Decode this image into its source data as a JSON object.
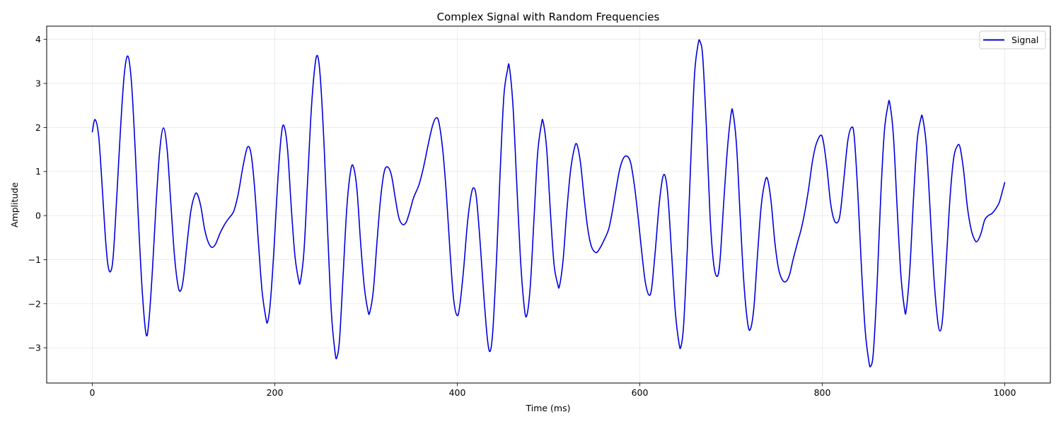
{
  "chart_data": {
    "type": "line",
    "title": "Complex Signal with Random Frequencies",
    "xlabel": "Time (ms)",
    "ylabel": "Amplitude",
    "xlim": [
      -50,
      1050
    ],
    "ylim": [
      -3.8,
      4.3
    ],
    "xticks": [
      0,
      200,
      400,
      600,
      800,
      1000
    ],
    "xtick_labels": [
      "0",
      "200",
      "400",
      "600",
      "800",
      "1000"
    ],
    "yticks": [
      -3,
      -2,
      -1,
      0,
      1,
      2,
      3,
      4
    ],
    "ytick_labels": [
      "−3",
      "−2",
      "−1",
      "0",
      "1",
      "2",
      "3",
      "4"
    ],
    "grid": true,
    "legend_position": "top-right",
    "series": [
      {
        "name": "Signal",
        "color": "#0000dd",
        "points": [
          [
            0,
            1.9
          ],
          [
            3,
            2.18
          ],
          [
            7,
            1.8
          ],
          [
            11,
            0.6
          ],
          [
            14,
            -0.4
          ],
          [
            17,
            -1.1
          ],
          [
            20,
            -1.27
          ],
          [
            23,
            -0.9
          ],
          [
            27,
            0.5
          ],
          [
            31,
            2.0
          ],
          [
            35,
            3.2
          ],
          [
            39,
            3.62
          ],
          [
            43,
            3.0
          ],
          [
            47,
            1.5
          ],
          [
            51,
            -0.3
          ],
          [
            55,
            -1.8
          ],
          [
            59,
            -2.7
          ],
          [
            62,
            -2.4
          ],
          [
            66,
            -1.2
          ],
          [
            70,
            0.3
          ],
          [
            74,
            1.5
          ],
          [
            78,
            1.99
          ],
          [
            82,
            1.5
          ],
          [
            86,
            0.3
          ],
          [
            90,
            -0.9
          ],
          [
            94,
            -1.6
          ],
          [
            97,
            -1.7
          ],
          [
            100,
            -1.4
          ],
          [
            104,
            -0.6
          ],
          [
            108,
            0.1
          ],
          [
            112,
            0.45
          ],
          [
            115,
            0.49
          ],
          [
            119,
            0.2
          ],
          [
            123,
            -0.3
          ],
          [
            127,
            -0.6
          ],
          [
            131,
            -0.72
          ],
          [
            135,
            -0.65
          ],
          [
            140,
            -0.4
          ],
          [
            145,
            -0.2
          ],
          [
            150,
            -0.05
          ],
          [
            155,
            0.1
          ],
          [
            160,
            0.5
          ],
          [
            165,
            1.1
          ],
          [
            170,
            1.55
          ],
          [
            174,
            1.4
          ],
          [
            178,
            0.6
          ],
          [
            182,
            -0.6
          ],
          [
            186,
            -1.7
          ],
          [
            190,
            -2.3
          ],
          [
            192,
            -2.42
          ],
          [
            195,
            -2.0
          ],
          [
            199,
            -0.8
          ],
          [
            203,
            0.7
          ],
          [
            207,
            1.8
          ],
          [
            210,
            2.04
          ],
          [
            214,
            1.5
          ],
          [
            218,
            0.2
          ],
          [
            222,
            -0.9
          ],
          [
            226,
            -1.45
          ],
          [
            228,
            -1.5
          ],
          [
            232,
            -0.8
          ],
          [
            236,
            0.8
          ],
          [
            240,
            2.4
          ],
          [
            244,
            3.4
          ],
          [
            247,
            3.62
          ],
          [
            250,
            3.1
          ],
          [
            254,
            1.6
          ],
          [
            258,
            -0.4
          ],
          [
            262,
            -2.2
          ],
          [
            266,
            -3.1
          ],
          [
            268,
            -3.22
          ],
          [
            271,
            -2.8
          ],
          [
            275,
            -1.3
          ],
          [
            279,
            0.2
          ],
          [
            283,
            1.0
          ],
          [
            286,
            1.12
          ],
          [
            290,
            0.6
          ],
          [
            294,
            -0.6
          ],
          [
            298,
            -1.6
          ],
          [
            302,
            -2.15
          ],
          [
            304,
            -2.2
          ],
          [
            308,
            -1.7
          ],
          [
            312,
            -0.6
          ],
          [
            316,
            0.4
          ],
          [
            320,
            1.0
          ],
          [
            324,
            1.1
          ],
          [
            328,
            0.9
          ],
          [
            332,
            0.4
          ],
          [
            336,
            -0.05
          ],
          [
            340,
            -0.2
          ],
          [
            344,
            -0.15
          ],
          [
            348,
            0.1
          ],
          [
            352,
            0.4
          ],
          [
            358,
            0.7
          ],
          [
            363,
            1.1
          ],
          [
            368,
            1.6
          ],
          [
            373,
            2.05
          ],
          [
            377,
            2.22
          ],
          [
            380,
            2.1
          ],
          [
            384,
            1.5
          ],
          [
            388,
            0.5
          ],
          [
            392,
            -0.8
          ],
          [
            396,
            -1.9
          ],
          [
            400,
            -2.27
          ],
          [
            403,
            -2.0
          ],
          [
            407,
            -1.2
          ],
          [
            411,
            -0.2
          ],
          [
            415,
            0.45
          ],
          [
            418,
            0.63
          ],
          [
            421,
            0.4
          ],
          [
            425,
            -0.6
          ],
          [
            429,
            -1.8
          ],
          [
            433,
            -2.8
          ],
          [
            436,
            -3.08
          ],
          [
            439,
            -2.6
          ],
          [
            443,
            -1.0
          ],
          [
            447,
            1.0
          ],
          [
            451,
            2.7
          ],
          [
            455,
            3.3
          ],
          [
            457,
            3.38
          ],
          [
            461,
            2.5
          ],
          [
            465,
            0.8
          ],
          [
            469,
            -0.9
          ],
          [
            473,
            -2.0
          ],
          [
            476,
            -2.28
          ],
          [
            480,
            -1.6
          ],
          [
            484,
            -0.1
          ],
          [
            488,
            1.4
          ],
          [
            492,
            2.05
          ],
          [
            494,
            2.14
          ],
          [
            498,
            1.5
          ],
          [
            502,
            0.1
          ],
          [
            506,
            -1.1
          ],
          [
            510,
            -1.55
          ],
          [
            512,
            -1.6
          ],
          [
            516,
            -1.0
          ],
          [
            520,
            0.1
          ],
          [
            524,
            1.0
          ],
          [
            528,
            1.5
          ],
          [
            531,
            1.62
          ],
          [
            535,
            1.2
          ],
          [
            539,
            0.4
          ],
          [
            543,
            -0.3
          ],
          [
            547,
            -0.7
          ],
          [
            552,
            -0.84
          ],
          [
            556,
            -0.75
          ],
          [
            561,
            -0.55
          ],
          [
            566,
            -0.3
          ],
          [
            570,
            0.1
          ],
          [
            574,
            0.6
          ],
          [
            578,
            1.05
          ],
          [
            582,
            1.3
          ],
          [
            586,
            1.35
          ],
          [
            590,
            1.2
          ],
          [
            594,
            0.7
          ],
          [
            598,
            0.0
          ],
          [
            602,
            -0.8
          ],
          [
            606,
            -1.5
          ],
          [
            610,
            -1.8
          ],
          [
            613,
            -1.65
          ],
          [
            617,
            -0.8
          ],
          [
            621,
            0.2
          ],
          [
            625,
            0.85
          ],
          [
            628,
            0.88
          ],
          [
            631,
            0.4
          ],
          [
            635,
            -0.9
          ],
          [
            639,
            -2.2
          ],
          [
            643,
            -2.9
          ],
          [
            645,
            -2.98
          ],
          [
            648,
            -2.5
          ],
          [
            652,
            -0.8
          ],
          [
            656,
            1.3
          ],
          [
            660,
            3.2
          ],
          [
            664,
            3.9
          ],
          [
            666,
            3.95
          ],
          [
            669,
            3.6
          ],
          [
            673,
            2.0
          ],
          [
            677,
            0.0
          ],
          [
            681,
            -1.1
          ],
          [
            685,
            -1.38
          ],
          [
            688,
            -1.0
          ],
          [
            692,
            0.3
          ],
          [
            696,
            1.5
          ],
          [
            700,
            2.3
          ],
          [
            702,
            2.35
          ],
          [
            706,
            1.6
          ],
          [
            710,
            0.0
          ],
          [
            714,
            -1.5
          ],
          [
            718,
            -2.4
          ],
          [
            721,
            -2.59
          ],
          [
            725,
            -2.1
          ],
          [
            729,
            -0.9
          ],
          [
            733,
            0.2
          ],
          [
            737,
            0.75
          ],
          [
            740,
            0.83
          ],
          [
            744,
            0.3
          ],
          [
            748,
            -0.6
          ],
          [
            752,
            -1.2
          ],
          [
            756,
            -1.45
          ],
          [
            760,
            -1.5
          ],
          [
            764,
            -1.35
          ],
          [
            768,
            -1.0
          ],
          [
            773,
            -0.6
          ],
          [
            777,
            -0.3
          ],
          [
            781,
            0.1
          ],
          [
            785,
            0.6
          ],
          [
            789,
            1.2
          ],
          [
            793,
            1.6
          ],
          [
            798,
            1.82
          ],
          [
            801,
            1.7
          ],
          [
            805,
            1.1
          ],
          [
            809,
            0.3
          ],
          [
            813,
            -0.1
          ],
          [
            817,
            -0.15
          ],
          [
            820,
            0.1
          ],
          [
            824,
            0.9
          ],
          [
            828,
            1.7
          ],
          [
            832,
            2.0
          ],
          [
            835,
            1.8
          ],
          [
            839,
            0.5
          ],
          [
            843,
            -1.2
          ],
          [
            847,
            -2.6
          ],
          [
            851,
            -3.3
          ],
          [
            853,
            -3.42
          ],
          [
            856,
            -3.1
          ],
          [
            860,
            -1.6
          ],
          [
            864,
            0.4
          ],
          [
            868,
            1.9
          ],
          [
            872,
            2.5
          ],
          [
            874,
            2.55
          ],
          [
            878,
            1.8
          ],
          [
            882,
            0.2
          ],
          [
            886,
            -1.3
          ],
          [
            890,
            -2.1
          ],
          [
            892,
            -2.15
          ],
          [
            896,
            -1.2
          ],
          [
            900,
            0.4
          ],
          [
            904,
            1.7
          ],
          [
            908,
            2.2
          ],
          [
            910,
            2.22
          ],
          [
            914,
            1.6
          ],
          [
            918,
            0.2
          ],
          [
            922,
            -1.3
          ],
          [
            926,
            -2.3
          ],
          [
            929,
            -2.62
          ],
          [
            932,
            -2.3
          ],
          [
            936,
            -1.0
          ],
          [
            940,
            0.4
          ],
          [
            944,
            1.3
          ],
          [
            948,
            1.58
          ],
          [
            951,
            1.55
          ],
          [
            955,
            1.0
          ],
          [
            959,
            0.2
          ],
          [
            963,
            -0.3
          ],
          [
            967,
            -0.55
          ],
          [
            970,
            -0.58
          ],
          [
            974,
            -0.4
          ],
          [
            978,
            -0.1
          ],
          [
            982,
            0.0
          ],
          [
            986,
            0.05
          ],
          [
            990,
            0.15
          ],
          [
            994,
            0.3
          ],
          [
            998,
            0.6
          ],
          [
            1000,
            0.75
          ]
        ]
      }
    ]
  }
}
